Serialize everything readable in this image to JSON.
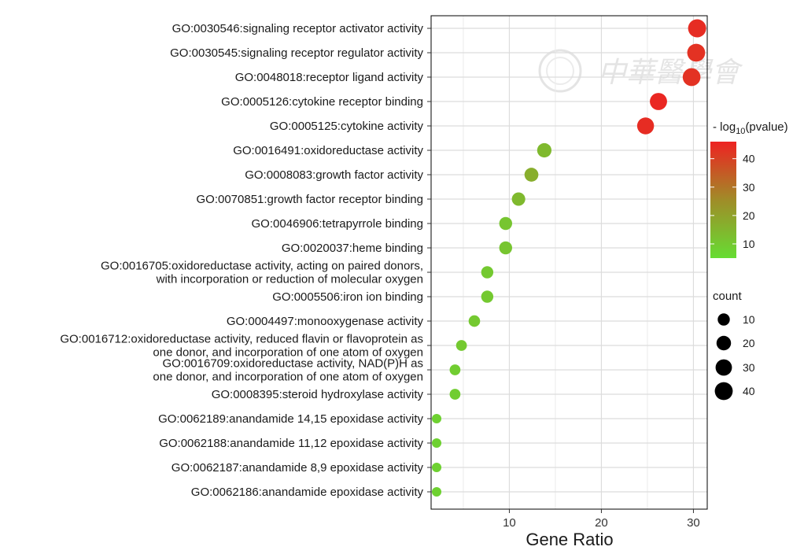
{
  "chart_data": {
    "type": "scatter",
    "xlabel": "Gene Ratio",
    "xlim": [
      1.5,
      31.5
    ],
    "xticks": [
      10,
      20,
      30
    ],
    "grid": true,
    "categories": [
      {
        "label": [
          "GO:0030546:signaling receptor activator activity"
        ],
        "x": 30.4,
        "count": 41,
        "logp": 44
      },
      {
        "label": [
          "GO:0030545:signaling receptor regulator activity"
        ],
        "x": 30.3,
        "count": 40,
        "logp": 43
      },
      {
        "label": [
          "GO:0048018:receptor ligand activity"
        ],
        "x": 29.8,
        "count": 39,
        "logp": 43
      },
      {
        "label": [
          "GO:0005126:cytokine receptor binding"
        ],
        "x": 26.2,
        "count": 35,
        "logp": 45
      },
      {
        "label": [
          "GO:0005125:cytokine activity"
        ],
        "x": 24.8,
        "count": 33,
        "logp": 44
      },
      {
        "label": [
          "GO:0016491:oxidoreductase activity"
        ],
        "x": 13.8,
        "count": 19,
        "logp": 14
      },
      {
        "label": [
          "GO:0008083:growth factor activity"
        ],
        "x": 12.4,
        "count": 17,
        "logp": 17
      },
      {
        "label": [
          "GO:0070851:growth factor receptor binding"
        ],
        "x": 11.0,
        "count": 15,
        "logp": 14
      },
      {
        "label": [
          "GO:0046906:tetrapyrrole binding"
        ],
        "x": 9.6,
        "count": 13,
        "logp": 11
      },
      {
        "label": [
          "GO:0020037:heme binding"
        ],
        "x": 9.6,
        "count": 13,
        "logp": 11
      },
      {
        "label": [
          "GO:0016705:oxidoreductase activity, acting on paired donors,",
          "with incorporation or reduction of molecular oxygen"
        ],
        "x": 7.6,
        "count": 10,
        "logp": 10
      },
      {
        "label": [
          "GO:0005506:iron ion binding"
        ],
        "x": 7.6,
        "count": 10,
        "logp": 10
      },
      {
        "label": [
          "GO:0004497:monooxygenase activity"
        ],
        "x": 6.2,
        "count": 8,
        "logp": 10
      },
      {
        "label": [
          "GO:0016712:oxidoreductase activity,  reduced flavin or flavoprotein as",
          "one donor, and incorporation of one atom of oxygen"
        ],
        "x": 4.8,
        "count": 6,
        "logp": 10
      },
      {
        "label": [
          "GO:0016709:oxidoreductase activity, NAD(P)H as",
          "one donor, and incorporation of one atom of oxygen"
        ],
        "x": 4.1,
        "count": 6,
        "logp": 9
      },
      {
        "label": [
          "GO:0008395:steroid hydroxylase activity"
        ],
        "x": 4.1,
        "count": 6,
        "logp": 9
      },
      {
        "label": [
          "GO:0062189:anandamide 14,15 epoxidase activity"
        ],
        "x": 2.1,
        "count": 3,
        "logp": 8
      },
      {
        "label": [
          "GO:0062188:anandamide 11,12 epoxidase activity"
        ],
        "x": 2.1,
        "count": 3,
        "logp": 8
      },
      {
        "label": [
          "GO:0062187:anandamide 8,9 epoxidase activity"
        ],
        "x": 2.1,
        "count": 3,
        "logp": 8
      },
      {
        "label": [
          "GO:0062186:anandamide epoxidase activity"
        ],
        "x": 2.1,
        "count": 3,
        "logp": 8
      }
    ],
    "color_legend": {
      "title_prefix": "- log",
      "title_sub": "10",
      "title_suffix": "(pvalue)",
      "min": 5,
      "max": 46,
      "ticks": [
        10,
        20,
        30,
        40
      ],
      "low_color": "#66dd33",
      "high_color": "#ee2222"
    },
    "size_legend": {
      "title": "count",
      "values": [
        10,
        20,
        30,
        40
      ],
      "labels": [
        "10",
        "20",
        "30",
        "40"
      ]
    },
    "watermark": "中華醫學會"
  }
}
